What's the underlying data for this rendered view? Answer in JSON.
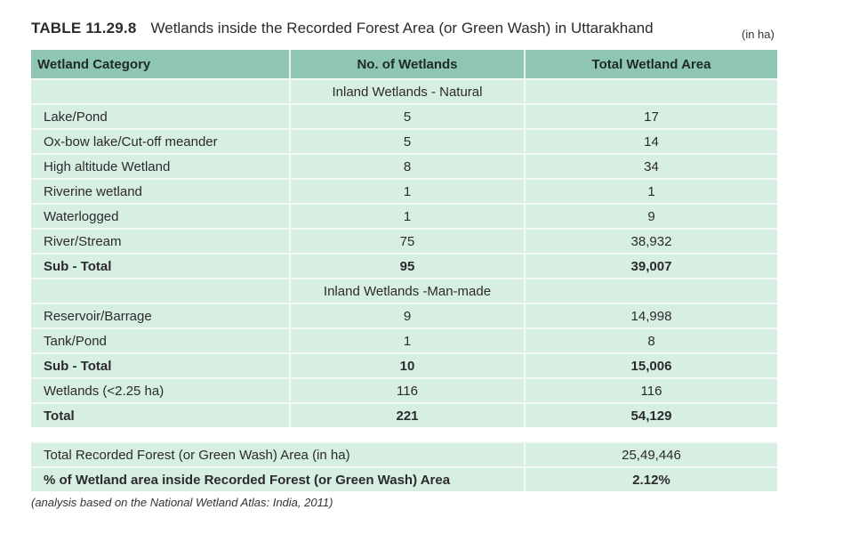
{
  "title": {
    "table_number": "TABLE 11.29.8",
    "caption": "Wetlands inside the Recorded Forest Area (or Green Wash) in Uttarakhand",
    "unit_note": "(in ha)"
  },
  "table": {
    "headers": [
      "Wetland Category",
      "No. of Wetlands",
      "Total Wetland Area"
    ],
    "natural": {
      "heading": "Inland Wetlands - Natural",
      "rows": [
        {
          "category": "Lake/Pond",
          "count": "5",
          "area": "17"
        },
        {
          "category": "Ox-bow lake/Cut-off meander",
          "count": "5",
          "area": "14"
        },
        {
          "category": "High altitude Wetland",
          "count": "8",
          "area": "34"
        },
        {
          "category": "Riverine wetland",
          "count": "1",
          "area": "1"
        },
        {
          "category": "Waterlogged",
          "count": "1",
          "area": "9"
        },
        {
          "category": "River/Stream",
          "count": "75",
          "area": "38,932"
        }
      ],
      "subtotal": {
        "category": "Sub - Total",
        "count": "95",
        "area": "39,007"
      }
    },
    "manmade": {
      "heading": "Inland Wetlands -Man-made",
      "rows": [
        {
          "category": "Reservoir/Barrage",
          "count": "9",
          "area": "14,998"
        },
        {
          "category": "Tank/Pond",
          "count": "1",
          "area": "8"
        }
      ],
      "subtotal": {
        "category": "Sub - Total",
        "count": "10",
        "area": "15,006"
      }
    },
    "small_wetlands": {
      "category": "Wetlands (<2.25 ha)",
      "count": "116",
      "area": "116"
    },
    "total": {
      "category": "Total",
      "count": "221",
      "area": "54,129"
    }
  },
  "summary": {
    "forest_area": {
      "label": "Total Recorded Forest (or Green Wash) Area (in ha)",
      "value": "25,49,446"
    },
    "percent": {
      "label": "% of Wetland area inside Recorded Forest (or Green Wash) Area",
      "value": "2.12%"
    }
  },
  "footnote": "(analysis based on the National Wetland Atlas: India, 2011)",
  "colors": {
    "header_bg": "#8fc6b2",
    "row_bg": "#d7eee3"
  }
}
